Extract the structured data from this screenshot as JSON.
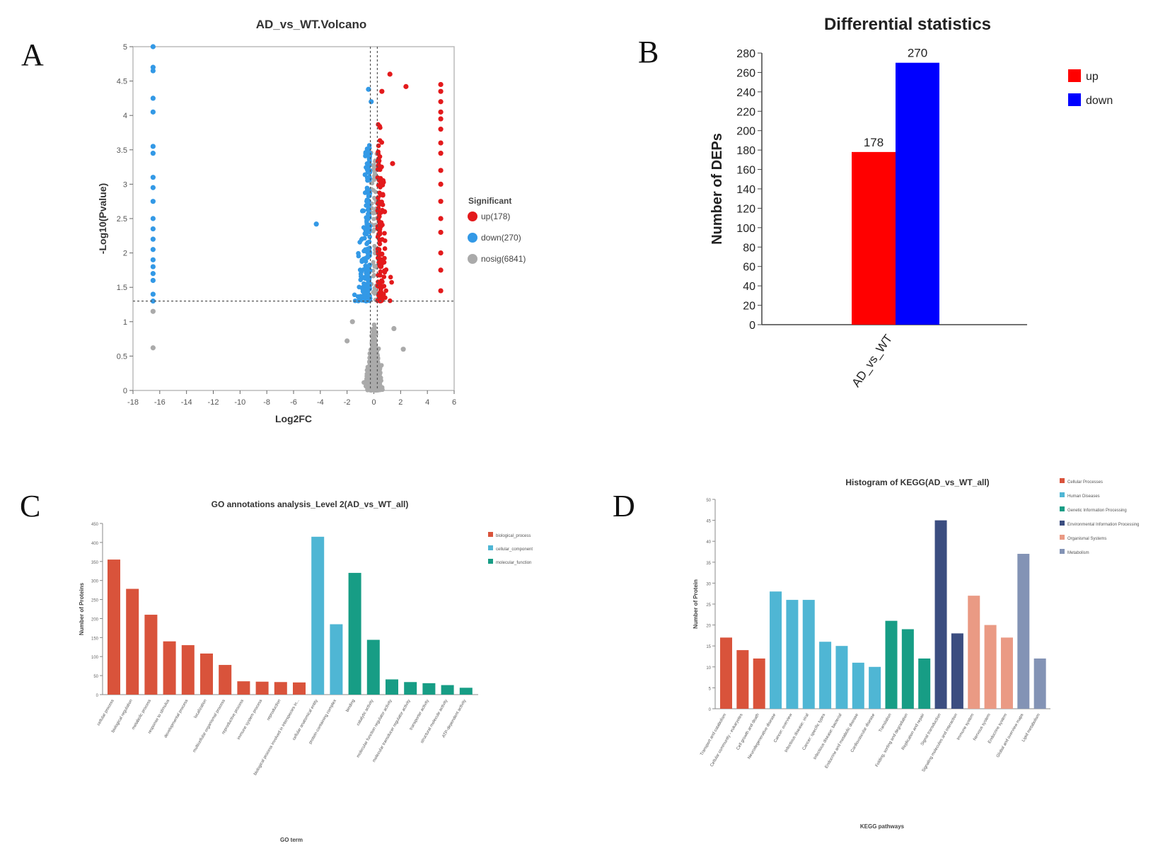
{
  "panel_labels": {
    "a": "A",
    "b": "B",
    "c": "C",
    "d": "D"
  },
  "colors": {
    "up": "#e31a1c",
    "down": "#3399e6",
    "nosig": "#aaaaaa",
    "bar_up": "#ff0000",
    "bar_down": "#0000ff",
    "bp": "#d9533b",
    "cc": "#4fb6d4",
    "mf": "#179d85",
    "kegg_cp": "#d9533b",
    "kegg_hd": "#4fb6d4",
    "kegg_gip": "#179d85",
    "kegg_eip": "#3b4d80",
    "kegg_os": "#ea9a84",
    "kegg_met": "#8393b5"
  },
  "chart_data": [
    {
      "id": "A",
      "type": "scatter",
      "title": "AD_vs_WT.Volcano",
      "xlabel": "Log2FC",
      "ylabel": "-Log10(Pvalue)",
      "xlim": [
        -18,
        6
      ],
      "ylim": [
        0,
        5
      ],
      "xticks": [
        -18,
        -16,
        -14,
        -12,
        -10,
        -8,
        -6,
        -4,
        -2,
        0,
        2,
        4,
        6
      ],
      "yticks": [
        0,
        0.5,
        1,
        1.5,
        2,
        2.5,
        3,
        3.5,
        4,
        4.5,
        5
      ],
      "threshold_y": 1.3,
      "threshold_x": [
        -0.26,
        0.26
      ],
      "legend_title": "Significant",
      "series": [
        {
          "name": "up(178)",
          "color_key": "up"
        },
        {
          "name": "down(270)",
          "color_key": "down"
        },
        {
          "name": "nosig(6841)",
          "color_key": "nosig"
        }
      ],
      "points": {
        "up_cluster_x": [
          5.0,
          5.0,
          5.0,
          5.0,
          5.0,
          5.0,
          5.0,
          5.0,
          5.0,
          5.0,
          5.0,
          5.0,
          5.0,
          5.0,
          5.0,
          5.0
        ],
        "up_cluster_y": [
          4.45,
          4.35,
          4.2,
          4.05,
          3.95,
          3.8,
          3.6,
          3.45,
          3.2,
          3.0,
          2.75,
          2.5,
          2.3,
          2.0,
          1.75,
          1.45
        ],
        "down_cluster_x": [
          -16.5,
          -16.5,
          -16.5,
          -16.5,
          -16.5,
          -16.5,
          -16.5,
          -16.5,
          -16.5,
          -16.5,
          -16.5,
          -16.5,
          -16.5,
          -16.5,
          -16.5,
          -16.5,
          -16.5,
          -16.5,
          -16.5,
          -16.5
        ],
        "down_cluster_y": [
          5.0,
          4.7,
          4.65,
          4.25,
          4.05,
          3.55,
          3.45,
          3.1,
          2.95,
          2.75,
          2.5,
          2.35,
          2.2,
          2.05,
          1.9,
          1.8,
          1.7,
          1.6,
          1.4,
          1.3
        ],
        "nosig_cluster_x": [
          -16.5,
          -16.5
        ],
        "nosig_cluster_y": [
          1.15,
          0.62
        ],
        "up_extra_x": [
          1.2,
          2.4,
          0.6,
          1.4,
          0.8
        ],
        "up_extra_y": [
          4.6,
          4.42,
          4.35,
          3.3,
          2.6
        ],
        "down_extra_x": [
          -0.4,
          -4.3,
          -0.2
        ],
        "down_extra_y": [
          4.38,
          2.42,
          4.2
        ],
        "nosig_extra_x": [
          -2.0,
          2.2,
          1.5,
          -1.6
        ],
        "nosig_extra_y": [
          0.72,
          0.6,
          0.9,
          1.0
        ]
      }
    },
    {
      "id": "B",
      "type": "bar",
      "title": "Differential statistics",
      "ylabel": "Number of DEPs",
      "xlabel": "",
      "ylim": [
        0,
        280
      ],
      "yticks": [
        0,
        20,
        40,
        60,
        80,
        100,
        120,
        140,
        160,
        180,
        200,
        220,
        240,
        260,
        280
      ],
      "categories": [
        "AD_vs_WT"
      ],
      "series": [
        {
          "name": "up",
          "values": [
            178
          ],
          "color_key": "bar_up",
          "label": "178"
        },
        {
          "name": "down",
          "values": [
            270
          ],
          "color_key": "bar_down",
          "label": "270"
        }
      ],
      "legend_position": "top-right"
    },
    {
      "id": "C",
      "type": "bar",
      "title": "GO annotations analysis_Level 2(AD_vs_WT_all)",
      "xlabel": "GO term",
      "ylabel": "Number of Proteins",
      "ylim": [
        0,
        450
      ],
      "yticks": [
        0,
        50,
        100,
        150,
        200,
        250,
        300,
        350,
        400,
        450
      ],
      "legend": [
        {
          "name": "biological_process",
          "color_key": "bp"
        },
        {
          "name": "cellular_component",
          "color_key": "cc"
        },
        {
          "name": "molecular_function",
          "color_key": "mf"
        }
      ],
      "categories": [
        "cellular process",
        "biological regulation",
        "metabolic process",
        "response to stimulus",
        "developmental process",
        "localization",
        "multicellular organismal process",
        "reproductive process",
        "immune system process",
        "reproduction",
        "biological process involved in interspecies in...",
        "cellular anatomical entity",
        "protein-containing complex",
        "binding",
        "catalytic activity",
        "molecular function regulator activity",
        "molecular transducer regulator activity",
        "transporter activity",
        "structural molecule activity",
        "ATP-dependent activity"
      ],
      "values": [
        355,
        278,
        210,
        140,
        130,
        108,
        78,
        35,
        34,
        33,
        32,
        415,
        185,
        320,
        144,
        40,
        33,
        30,
        25,
        18
      ],
      "groups": [
        "bp",
        "bp",
        "bp",
        "bp",
        "bp",
        "bp",
        "bp",
        "bp",
        "bp",
        "bp",
        "bp",
        "cc",
        "cc",
        "mf",
        "mf",
        "mf",
        "mf",
        "mf",
        "mf",
        "mf"
      ]
    },
    {
      "id": "D",
      "type": "bar",
      "title": "Histogram of KEGG(AD_vs_WT_all)",
      "xlabel": "KEGG pathways",
      "ylabel": "Number of Protein",
      "ylim": [
        0,
        50
      ],
      "yticks": [
        0,
        5,
        10,
        15,
        20,
        25,
        30,
        35,
        40,
        45,
        50
      ],
      "legend": [
        {
          "name": "Cellular Processes",
          "color_key": "kegg_cp"
        },
        {
          "name": "Human Diseases",
          "color_key": "kegg_hd"
        },
        {
          "name": "Genetic Information Processing",
          "color_key": "kegg_gip"
        },
        {
          "name": "Environmental Information Processing",
          "color_key": "kegg_eip"
        },
        {
          "name": "Organismal Systems",
          "color_key": "kegg_os"
        },
        {
          "name": "Metabolism",
          "color_key": "kegg_met"
        }
      ],
      "categories": [
        "Transport and catabolism",
        "Cellular community - eukaryotes",
        "Cell growth and death",
        "Neurodegenerative disease",
        "Cancer: overview",
        "Infectious disease: viral",
        "Cancer: specific types",
        "Infectious disease: bacterial",
        "Endocrine and metabolic disease",
        "Cardiovascular disease",
        "Translation",
        "Folding, sorting and degradation",
        "Replication and repair",
        "Signal transduction",
        "Signaling molecules and interaction",
        "Immune system",
        "Nervous system",
        "Endocrine system",
        "Global and overview maps",
        "Lipid metabolism"
      ],
      "values": [
        17,
        14,
        12,
        28,
        26,
        26,
        16,
        15,
        11,
        10,
        21,
        19,
        12,
        45,
        18,
        27,
        20,
        17,
        37,
        12
      ],
      "groups": [
        "kegg_cp",
        "kegg_cp",
        "kegg_cp",
        "kegg_hd",
        "kegg_hd",
        "kegg_hd",
        "kegg_hd",
        "kegg_hd",
        "kegg_hd",
        "kegg_hd",
        "kegg_gip",
        "kegg_gip",
        "kegg_gip",
        "kegg_eip",
        "kegg_eip",
        "kegg_os",
        "kegg_os",
        "kegg_os",
        "kegg_met",
        "kegg_met"
      ]
    }
  ]
}
